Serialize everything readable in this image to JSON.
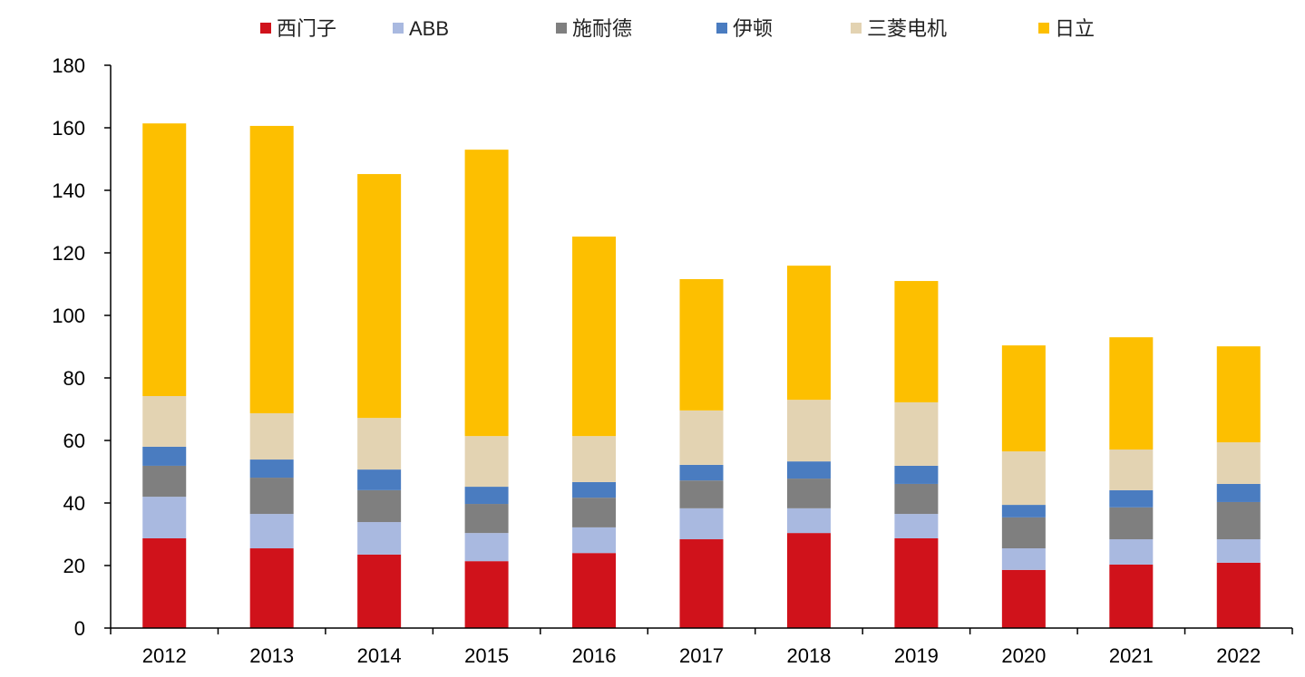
{
  "chart_data": {
    "type": "bar",
    "stacked": true,
    "title": "",
    "xlabel": "",
    "ylabel": "",
    "ylim": [
      0,
      180
    ],
    "yticks": [
      0,
      20,
      40,
      60,
      80,
      100,
      120,
      140,
      160,
      180
    ],
    "grid": false,
    "legend_placement": "top",
    "categories": [
      "2012",
      "2013",
      "2014",
      "2015",
      "2016",
      "2017",
      "2018",
      "2019",
      "2020",
      "2021",
      "2022"
    ],
    "series": [
      {
        "name": "西门子",
        "color": "#d0121b",
        "values": [
          28.7,
          25.5,
          23.5,
          21.4,
          24.0,
          28.4,
          30.4,
          28.7,
          18.6,
          20.3,
          20.9
        ]
      },
      {
        "name": "ABB",
        "color": "#a9b9e0",
        "values": [
          13.3,
          11.0,
          10.4,
          9.0,
          8.2,
          9.9,
          7.9,
          7.8,
          6.9,
          8.1,
          7.5
        ]
      },
      {
        "name": "施耐德",
        "color": "#7f7f7f",
        "values": [
          9.9,
          11.6,
          10.2,
          9.3,
          9.5,
          8.9,
          9.5,
          9.6,
          9.9,
          10.2,
          11.9
        ]
      },
      {
        "name": "伊顿",
        "color": "#4a7cc0",
        "values": [
          6.1,
          5.8,
          6.6,
          5.5,
          5.0,
          5.0,
          5.5,
          5.8,
          4.0,
          5.5,
          5.8
        ]
      },
      {
        "name": "三菱电机",
        "color": "#e3d3b2",
        "values": [
          16.2,
          14.8,
          16.5,
          16.2,
          14.7,
          17.4,
          19.7,
          20.3,
          17.1,
          13.0,
          13.3
        ]
      },
      {
        "name": "日立",
        "color": "#fdbf00",
        "values": [
          87.2,
          91.9,
          78.0,
          91.6,
          63.8,
          42.0,
          42.9,
          38.8,
          33.9,
          35.9,
          30.7
        ]
      }
    ]
  }
}
